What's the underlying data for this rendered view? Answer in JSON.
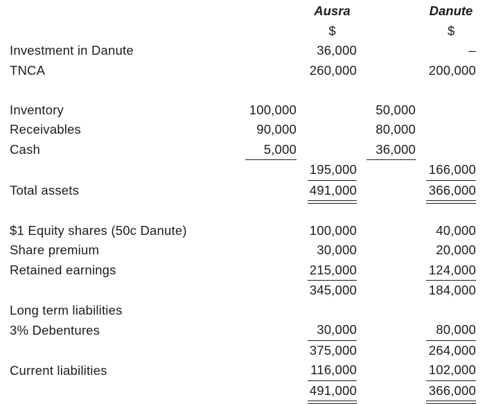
{
  "colors": {
    "text": "#1c1c1c",
    "background": "#ffffff",
    "rule": "#1c1c1c"
  },
  "statement": {
    "companies": [
      {
        "name": "Ausra",
        "currency": "$"
      },
      {
        "name": "Danute",
        "currency": "$"
      }
    ],
    "rows": [
      {
        "name": "row-investment-in-danute",
        "label": "Investment in Danute",
        "b": "36,000",
        "d": "–"
      },
      {
        "name": "row-tnca",
        "label": "TNCA",
        "b": "260,000",
        "d": "200,000"
      },
      {
        "name": "spacer-row",
        "spacer": true
      },
      {
        "name": "row-inventory",
        "label": "Inventory",
        "a": "100,000",
        "c": "50,000"
      },
      {
        "name": "row-receivables",
        "label": "Receivables",
        "a": "90,000",
        "c": "80,000"
      },
      {
        "name": "row-cash",
        "label": "Cash",
        "a": "5,000",
        "rule_a": "single",
        "c": "36,000",
        "rule_c": "single"
      },
      {
        "name": "row-current-assets-subtotal",
        "label": "",
        "b": "195,000",
        "rule_b": "single",
        "d": "166,000",
        "rule_d": "single"
      },
      {
        "name": "row-total-assets",
        "label": "Total assets",
        "b": "491,000",
        "rule_b": "double",
        "d": "366,000",
        "rule_d": "double"
      },
      {
        "name": "spacer-row",
        "spacer": true
      },
      {
        "name": "row-equity-shares",
        "label": "$1 Equity shares (50c Danute)",
        "b": "100,000",
        "d": "40,000"
      },
      {
        "name": "row-share-premium",
        "label": "Share premium",
        "b": "30,000",
        "d": "20,000"
      },
      {
        "name": "row-retained-earnings",
        "label": "Retained earnings",
        "b": "215,000",
        "rule_b": "single",
        "d": "124,000",
        "rule_d": "single"
      },
      {
        "name": "row-equity-subtotal",
        "label": "",
        "b": "345,000",
        "d": "184,000"
      },
      {
        "name": "row-long-term-liabilities-heading",
        "label": "Long term liabilities"
      },
      {
        "name": "row-debentures",
        "label": "3% Debentures",
        "b": "30,000",
        "rule_b": "single",
        "d": "80,000",
        "rule_d": "single"
      },
      {
        "name": "row-equity-and-ltl-subtotal",
        "label": "",
        "b": "375,000",
        "d": "264,000"
      },
      {
        "name": "row-current-liabilities",
        "label": "Current liabilities",
        "b": "116,000",
        "rule_b": "single",
        "d": "102,000",
        "rule_d": "single"
      },
      {
        "name": "row-total-equity-and-liabilities",
        "label": "",
        "b": "491,000",
        "rule_b": "double",
        "d": "366,000",
        "rule_d": "double"
      }
    ]
  }
}
